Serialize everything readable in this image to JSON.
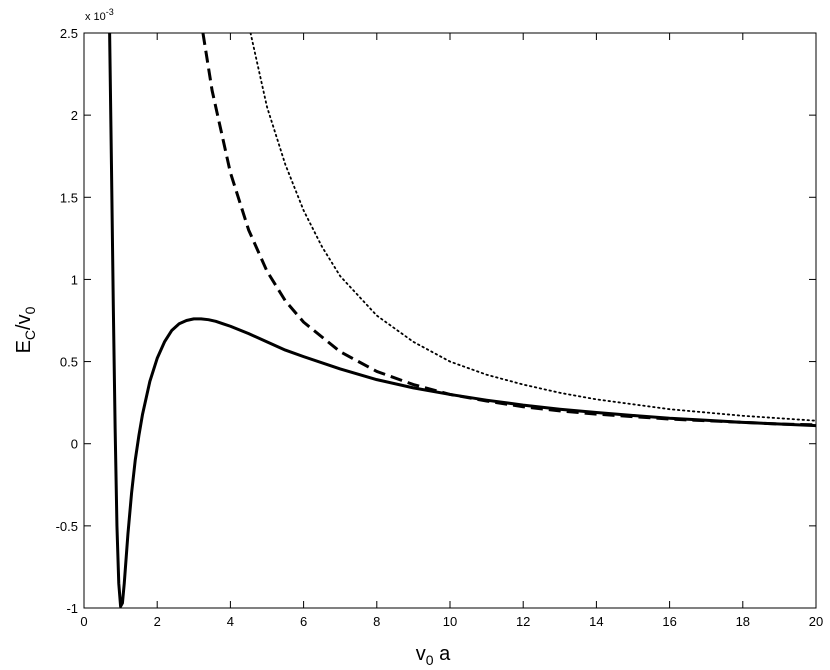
{
  "chart_data": {
    "type": "line",
    "title": "",
    "xlabel": {
      "base": "v",
      "sub": "0",
      "tail": " a"
    },
    "ylabel": {
      "base": "E",
      "sub1": "C",
      "mid": "/v",
      "sub2": "0"
    },
    "y_multiplier": {
      "prefix": "x 10",
      "exponent": "-3"
    },
    "xlim": [
      0,
      20
    ],
    "ylim": [
      -1,
      2.5
    ],
    "xticks": [
      "0",
      "2",
      "4",
      "6",
      "8",
      "10",
      "12",
      "14",
      "16",
      "18",
      "20"
    ],
    "yticks": [
      "-1",
      "-0.5",
      "0",
      "0.5",
      "1",
      "1.5",
      "2",
      "2.5"
    ],
    "grid": false,
    "legend": "none",
    "series": [
      {
        "style": "solid",
        "x": [
          0.7,
          0.75,
          0.8,
          0.85,
          0.9,
          0.95,
          1.0,
          1.05,
          1.1,
          1.2,
          1.3,
          1.4,
          1.5,
          1.6,
          1.8,
          2.0,
          2.2,
          2.4,
          2.6,
          2.8,
          3.0,
          3.2,
          3.4,
          3.6,
          3.8,
          4.0,
          4.5,
          5.0,
          5.5,
          6.0,
          7.0,
          8.0,
          9.0,
          10.0,
          11.0,
          12.0,
          13.0,
          14.0,
          15.0,
          16.0,
          17.0,
          18.0,
          19.0,
          20.0
        ],
        "y": [
          2.5,
          1.7,
          0.85,
          0.1,
          -0.5,
          -0.85,
          -0.99,
          -0.97,
          -0.85,
          -0.55,
          -0.3,
          -0.1,
          0.05,
          0.18,
          0.38,
          0.52,
          0.62,
          0.69,
          0.73,
          0.75,
          0.76,
          0.76,
          0.755,
          0.745,
          0.73,
          0.715,
          0.67,
          0.62,
          0.57,
          0.53,
          0.455,
          0.39,
          0.34,
          0.3,
          0.265,
          0.235,
          0.21,
          0.19,
          0.172,
          0.155,
          0.143,
          0.13,
          0.12,
          0.11
        ]
      },
      {
        "style": "dashed",
        "x": [
          3.25,
          3.5,
          4.0,
          4.5,
          5.0,
          5.5,
          6.0,
          7.0,
          8.0,
          9.0,
          10.0,
          11.0,
          12.0,
          13.0,
          14.0,
          15.0,
          16.0,
          17.0,
          18.0,
          19.0,
          20.0
        ],
        "y": [
          2.5,
          2.15,
          1.65,
          1.3,
          1.05,
          0.87,
          0.74,
          0.56,
          0.44,
          0.36,
          0.3,
          0.26,
          0.225,
          0.2,
          0.18,
          0.165,
          0.15,
          0.14,
          0.13,
          0.12,
          0.115
        ]
      },
      {
        "style": "dotted",
        "x": [
          4.55,
          5.0,
          5.5,
          6.0,
          6.5,
          7.0,
          8.0,
          9.0,
          10.0,
          11.0,
          12.0,
          13.0,
          14.0,
          15.0,
          16.0,
          17.0,
          18.0,
          19.0,
          20.0
        ],
        "y": [
          2.5,
          2.05,
          1.7,
          1.42,
          1.2,
          1.02,
          0.78,
          0.62,
          0.5,
          0.42,
          0.36,
          0.31,
          0.27,
          0.24,
          0.21,
          0.19,
          0.17,
          0.155,
          0.14
        ]
      }
    ]
  }
}
